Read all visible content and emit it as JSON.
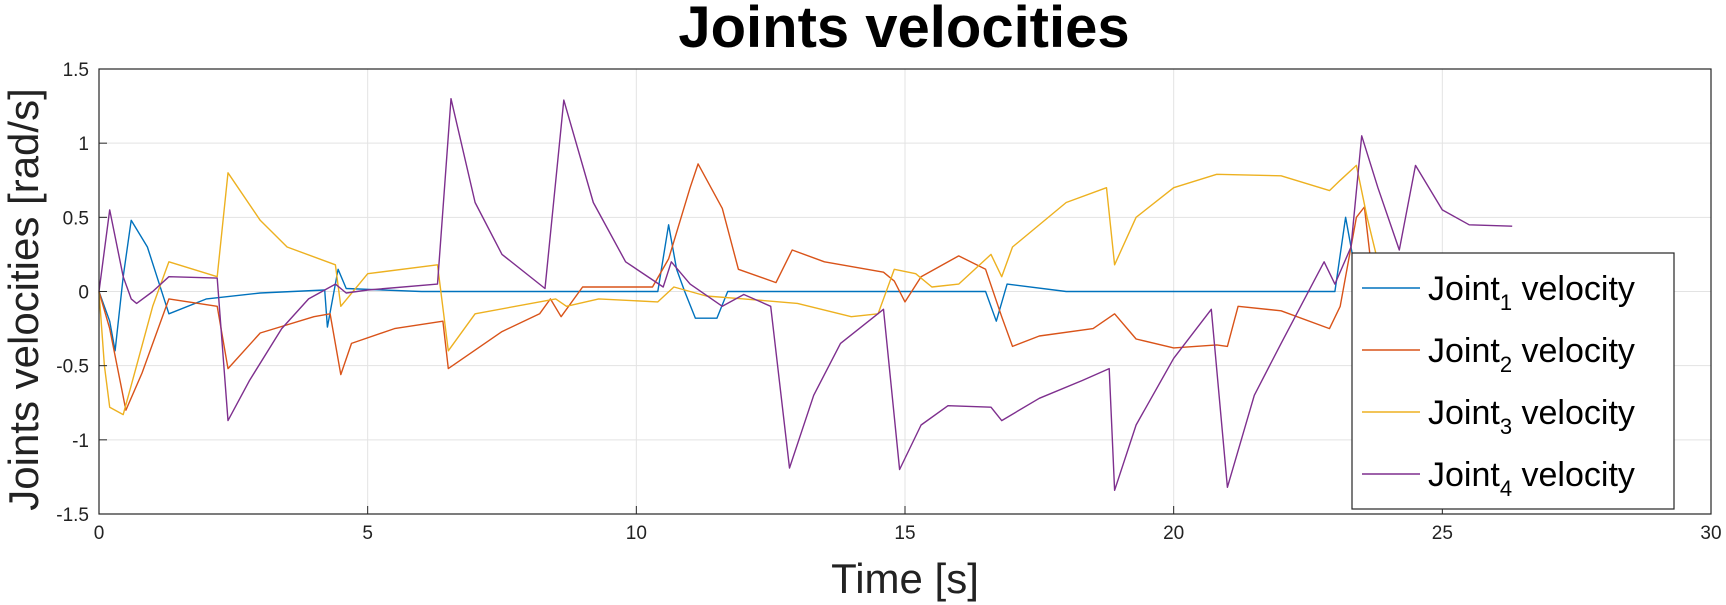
{
  "chart_data": {
    "type": "line",
    "title": "Joints velocities",
    "xlabel": "Time [s]",
    "ylabel": "Joints velocities [rad/s]",
    "xlim": [
      0,
      30
    ],
    "ylim": [
      -1.5,
      1.5
    ],
    "xticks": [
      "0",
      "5",
      "10",
      "15",
      "20",
      "25",
      "30"
    ],
    "yticks": [
      "-1.5",
      "-1",
      "-0.5",
      "0",
      "0.5",
      "1",
      "1.5"
    ],
    "grid": true,
    "legend_position": "bottom-right",
    "series": [
      {
        "name_main": "Joint",
        "name_sub": "1",
        "name_suffix": " velocity",
        "color": "#0072BD",
        "points": [
          [
            0,
            0
          ],
          [
            0.2,
            -0.2
          ],
          [
            0.3,
            -0.4
          ],
          [
            0.45,
            0.1
          ],
          [
            0.6,
            0.48
          ],
          [
            0.9,
            0.3
          ],
          [
            1.3,
            -0.15
          ],
          [
            2.0,
            -0.05
          ],
          [
            3.0,
            -0.01
          ],
          [
            4.2,
            0.01
          ],
          [
            4.25,
            -0.24
          ],
          [
            4.45,
            0.15
          ],
          [
            4.6,
            0.02
          ],
          [
            6.0,
            0
          ],
          [
            10.4,
            0
          ],
          [
            10.6,
            0.45
          ],
          [
            10.75,
            0.15
          ],
          [
            10.9,
            0
          ],
          [
            11.1,
            -0.18
          ],
          [
            11.5,
            -0.18
          ],
          [
            11.7,
            0
          ],
          [
            16.5,
            0
          ],
          [
            16.7,
            -0.2
          ],
          [
            16.9,
            0.05
          ],
          [
            18.0,
            0
          ],
          [
            23.0,
            0
          ],
          [
            23.2,
            0.5
          ],
          [
            23.35,
            0.2
          ],
          [
            23.5,
            0.05
          ]
        ]
      },
      {
        "name_main": "Joint",
        "name_sub": "2",
        "name_suffix": " velocity",
        "color": "#D95319",
        "points": [
          [
            0,
            0
          ],
          [
            0.2,
            -0.25
          ],
          [
            0.5,
            -0.8
          ],
          [
            0.8,
            -0.55
          ],
          [
            1.3,
            -0.05
          ],
          [
            2.2,
            -0.1
          ],
          [
            2.4,
            -0.52
          ],
          [
            3.0,
            -0.28
          ],
          [
            4.0,
            -0.17
          ],
          [
            4.3,
            -0.15
          ],
          [
            4.5,
            -0.56
          ],
          [
            4.7,
            -0.35
          ],
          [
            5.5,
            -0.25
          ],
          [
            6.4,
            -0.2
          ],
          [
            6.5,
            -0.52
          ],
          [
            7.5,
            -0.27
          ],
          [
            8.2,
            -0.15
          ],
          [
            8.4,
            -0.05
          ],
          [
            8.6,
            -0.17
          ],
          [
            9.0,
            0.03
          ],
          [
            10.3,
            0.03
          ],
          [
            10.6,
            0.22
          ],
          [
            11.0,
            0.7
          ],
          [
            11.15,
            0.86
          ],
          [
            11.6,
            0.56
          ],
          [
            11.9,
            0.15
          ],
          [
            12.6,
            0.06
          ],
          [
            12.9,
            0.28
          ],
          [
            13.5,
            0.2
          ],
          [
            14.6,
            0.13
          ],
          [
            14.8,
            0.07
          ],
          [
            15.0,
            -0.07
          ],
          [
            15.3,
            0.1
          ],
          [
            16.0,
            0.24
          ],
          [
            16.5,
            0.15
          ],
          [
            16.8,
            -0.17
          ],
          [
            17.0,
            -0.37
          ],
          [
            17.5,
            -0.3
          ],
          [
            18.5,
            -0.25
          ],
          [
            18.9,
            -0.15
          ],
          [
            19.3,
            -0.32
          ],
          [
            20.0,
            -0.38
          ],
          [
            20.8,
            -0.36
          ],
          [
            21.0,
            -0.37
          ],
          [
            21.2,
            -0.1
          ],
          [
            22.0,
            -0.13
          ],
          [
            22.9,
            -0.25
          ],
          [
            23.1,
            -0.1
          ],
          [
            23.4,
            0.5
          ],
          [
            23.55,
            0.57
          ],
          [
            23.7,
            0.1
          ],
          [
            23.9,
            -0.05
          ]
        ]
      },
      {
        "name_main": "Joint",
        "name_sub": "3",
        "name_suffix": " velocity",
        "color": "#EDB120",
        "points": [
          [
            0,
            0
          ],
          [
            0.1,
            -0.5
          ],
          [
            0.2,
            -0.78
          ],
          [
            0.45,
            -0.83
          ],
          [
            0.7,
            -0.5
          ],
          [
            1.0,
            -0.1
          ],
          [
            1.3,
            0.2
          ],
          [
            2.2,
            0.1
          ],
          [
            2.4,
            0.8
          ],
          [
            3.0,
            0.48
          ],
          [
            3.5,
            0.3
          ],
          [
            4.4,
            0.18
          ],
          [
            4.5,
            -0.1
          ],
          [
            5.0,
            0.12
          ],
          [
            6.3,
            0.18
          ],
          [
            6.5,
            -0.4
          ],
          [
            7.0,
            -0.15
          ],
          [
            8.5,
            -0.05
          ],
          [
            8.7,
            -0.1
          ],
          [
            9.3,
            -0.05
          ],
          [
            10.4,
            -0.07
          ],
          [
            10.7,
            0.03
          ],
          [
            11.3,
            -0.03
          ],
          [
            12.0,
            -0.05
          ],
          [
            13.0,
            -0.08
          ],
          [
            14.0,
            -0.17
          ],
          [
            14.5,
            -0.15
          ],
          [
            14.8,
            0.15
          ],
          [
            15.2,
            0.12
          ],
          [
            15.5,
            0.03
          ],
          [
            16.0,
            0.05
          ],
          [
            16.6,
            0.25
          ],
          [
            16.8,
            0.1
          ],
          [
            17.0,
            0.3
          ],
          [
            18.0,
            0.6
          ],
          [
            18.75,
            0.7
          ],
          [
            18.9,
            0.18
          ],
          [
            19.3,
            0.5
          ],
          [
            20.0,
            0.7
          ],
          [
            20.8,
            0.79
          ],
          [
            22.0,
            0.78
          ],
          [
            22.9,
            0.68
          ],
          [
            23.1,
            0.75
          ],
          [
            23.4,
            0.85
          ],
          [
            23.6,
            0.5
          ],
          [
            23.8,
            0.2
          ]
        ]
      },
      {
        "name_main": "Joint",
        "name_sub": "4",
        "name_suffix": " velocity",
        "color": "#7E2F8E",
        "points": [
          [
            0,
            0
          ],
          [
            0.2,
            0.55
          ],
          [
            0.45,
            0.1
          ],
          [
            0.6,
            -0.05
          ],
          [
            0.7,
            -0.08
          ],
          [
            1.0,
            0
          ],
          [
            1.3,
            0.1
          ],
          [
            2.2,
            0.09
          ],
          [
            2.4,
            -0.87
          ],
          [
            2.8,
            -0.6
          ],
          [
            3.4,
            -0.25
          ],
          [
            3.9,
            -0.05
          ],
          [
            4.4,
            0.05
          ],
          [
            4.6,
            -0.01
          ],
          [
            5.0,
            0.01
          ],
          [
            6.3,
            0.05
          ],
          [
            6.55,
            1.3
          ],
          [
            7.0,
            0.6
          ],
          [
            7.5,
            0.25
          ],
          [
            8.3,
            0.02
          ],
          [
            8.65,
            1.29
          ],
          [
            9.2,
            0.6
          ],
          [
            9.8,
            0.2
          ],
          [
            10.5,
            0.03
          ],
          [
            10.65,
            0.2
          ],
          [
            11.0,
            0.05
          ],
          [
            11.6,
            -0.1
          ],
          [
            12.0,
            -0.02
          ],
          [
            12.5,
            -0.1
          ],
          [
            12.85,
            -1.19
          ],
          [
            13.3,
            -0.7
          ],
          [
            13.8,
            -0.35
          ],
          [
            14.6,
            -0.12
          ],
          [
            14.9,
            -1.2
          ],
          [
            15.3,
            -0.9
          ],
          [
            15.8,
            -0.77
          ],
          [
            16.6,
            -0.78
          ],
          [
            16.8,
            -0.87
          ],
          [
            17.5,
            -0.72
          ],
          [
            18.3,
            -0.6
          ],
          [
            18.8,
            -0.52
          ],
          [
            18.9,
            -1.34
          ],
          [
            19.3,
            -0.9
          ],
          [
            20.0,
            -0.45
          ],
          [
            20.7,
            -0.12
          ],
          [
            21.0,
            -1.32
          ],
          [
            21.5,
            -0.7
          ],
          [
            22.0,
            -0.35
          ],
          [
            22.8,
            0.2
          ],
          [
            23.0,
            0.05
          ],
          [
            23.3,
            0.3
          ],
          [
            23.5,
            1.05
          ],
          [
            23.8,
            0.7
          ],
          [
            24.2,
            0.28
          ],
          [
            24.5,
            0.85
          ],
          [
            25.0,
            0.55
          ],
          [
            25.5,
            0.45
          ],
          [
            26.3,
            0.44
          ]
        ]
      }
    ]
  }
}
